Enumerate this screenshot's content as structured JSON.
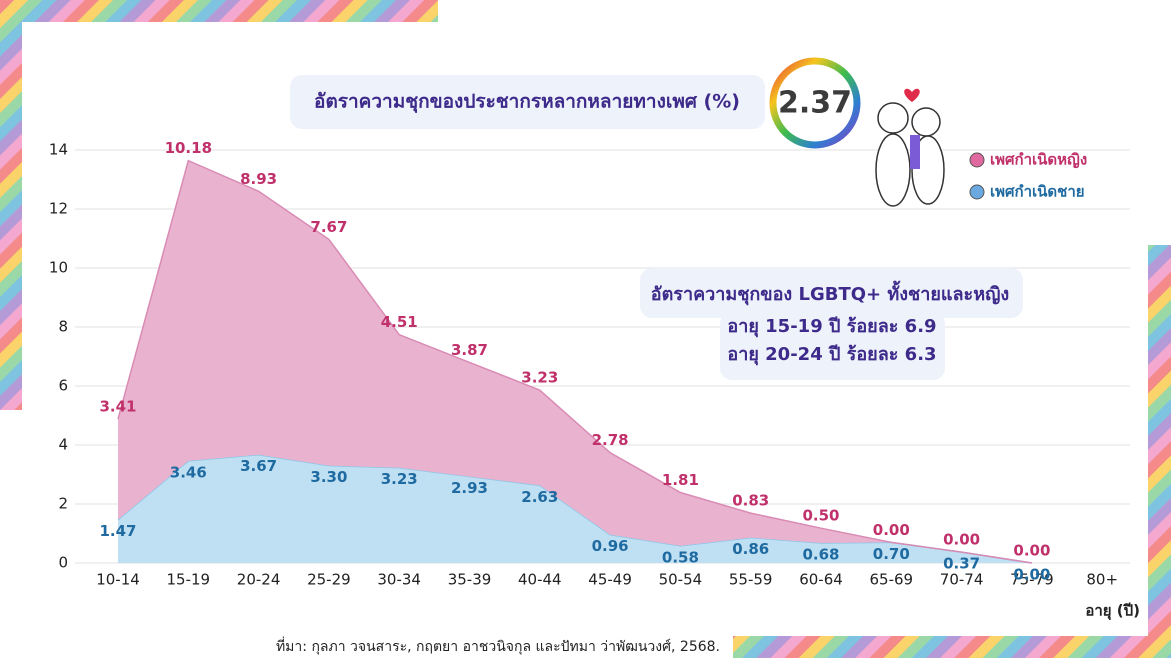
{
  "chart_data": {
    "type": "area",
    "stacked": true,
    "title": "อัตราความชุกของประชากรหลากหลายทางเพศ (%)",
    "overall_rate": 2.37,
    "categories": [
      "10-14",
      "15-19",
      "20-24",
      "25-29",
      "30-34",
      "35-39",
      "40-44",
      "45-49",
      "50-54",
      "55-59",
      "60-64",
      "65-69",
      "70-74",
      "75-79",
      "80+"
    ],
    "series": [
      {
        "name": "เพศกำเนิดชาย",
        "color": "#bfe0f3",
        "line_color": "#8cc6e8",
        "label_color": "#1f6aa0",
        "values": [
          1.47,
          3.46,
          3.67,
          3.3,
          3.23,
          2.93,
          2.63,
          0.96,
          0.58,
          0.86,
          0.68,
          0.7,
          0.37,
          0.0,
          null
        ],
        "value_labels": [
          "1.47",
          "3.46",
          "3.67",
          "3.30",
          "3.23",
          "2.93",
          "2.63",
          "0.96",
          "0.58",
          "0.86",
          "0.68",
          "0.70",
          "0.37",
          "0.00",
          null
        ]
      },
      {
        "name": "เพศกำเนิดหญิง",
        "color": "#e9b3cf",
        "line_color": "#d98bb5",
        "label_color": "#c0306a",
        "values": [
          3.41,
          10.18,
          8.93,
          7.67,
          4.51,
          3.87,
          3.23,
          2.78,
          1.81,
          0.83,
          0.5,
          0.0,
          0.0,
          0.0,
          null
        ],
        "value_labels": [
          "3.41",
          "10.18",
          "8.93",
          "7.67",
          "4.51",
          "3.87",
          "3.23",
          "2.78",
          "1.81",
          "0.83",
          "0.50",
          "0.00",
          "0.00",
          "0.00",
          null
        ]
      }
    ],
    "ylim": [
      0,
      14
    ],
    "yticks": [
      0,
      2,
      4,
      6,
      8,
      10,
      12,
      14
    ],
    "grid": true,
    "x_label": "อายุ (ปี)",
    "annotation": [
      "อัตราความชุกของ LGBTQ+ ทั้งชายและหญิง",
      "อายุ 15-19 ปี ร้อยละ 6.9",
      "อายุ 20-24 ปี ร้อยละ 6.3"
    ],
    "source": "ที่มา: กุลภา วจนสาระ, กฤตยา อาชวนิจกุล และปัทมา ว่าพัฒนวงศ์, 2568."
  }
}
